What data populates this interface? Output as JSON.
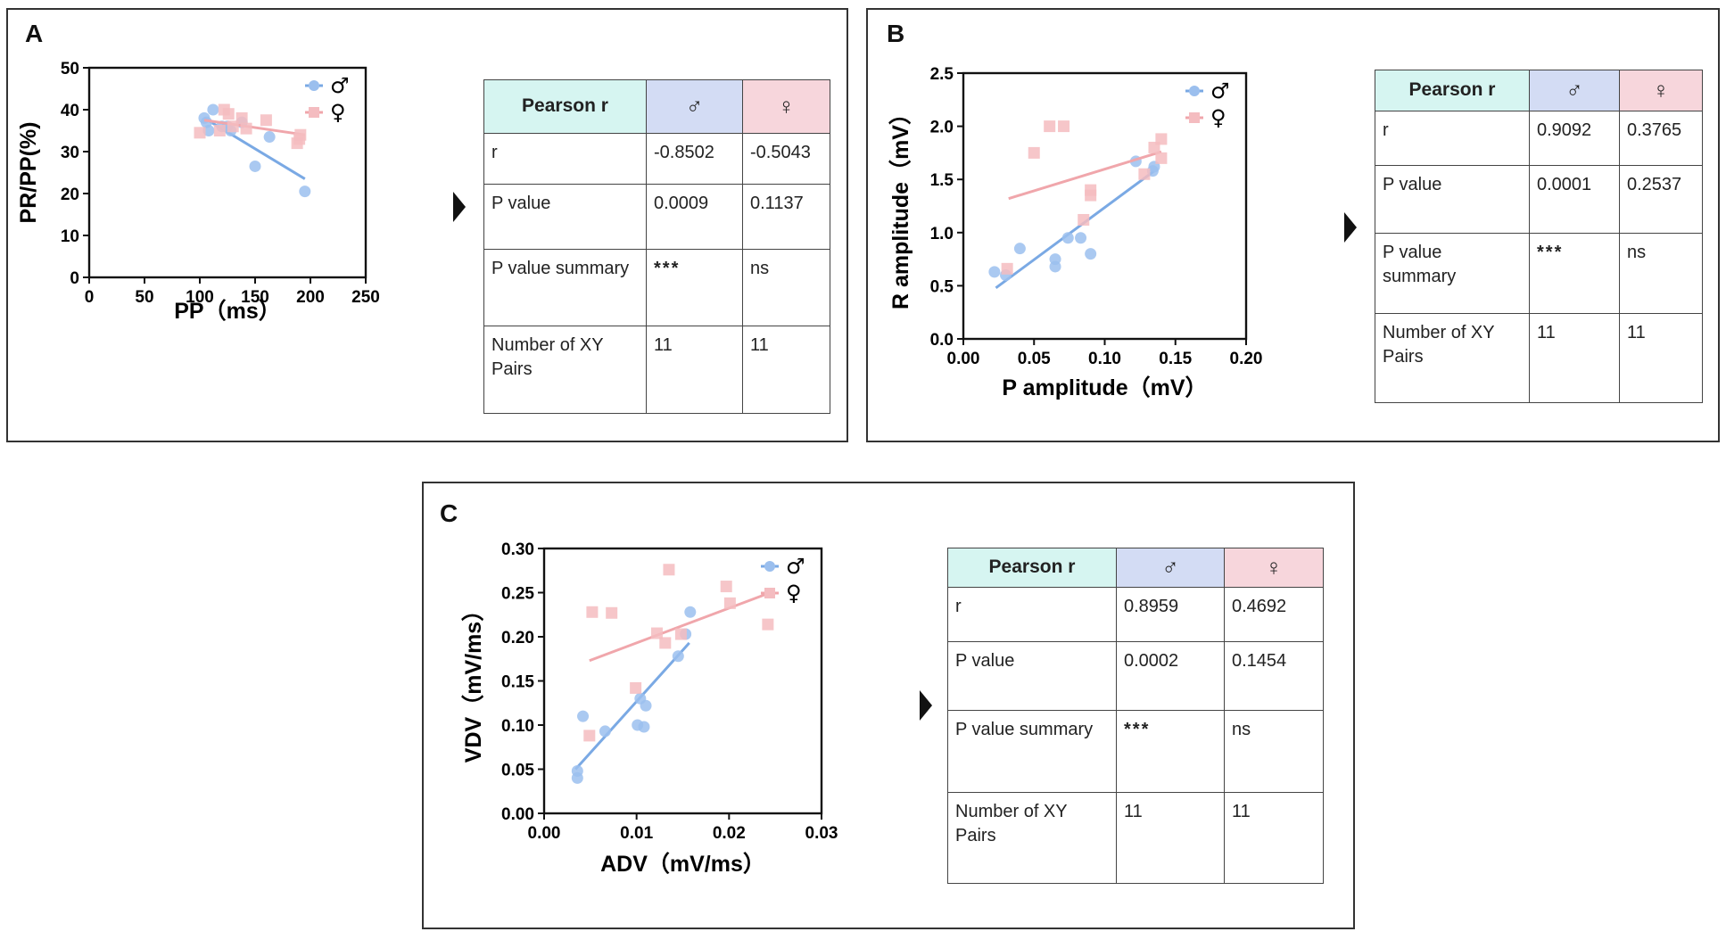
{
  "colors": {
    "male": "#9bbfee",
    "male_line": "#7aa9e4",
    "female": "#f4bcc0",
    "female_line": "#f0a6ab",
    "stars": "#d8202a"
  },
  "arrow_icon": "triangle-right-icon",
  "panels": [
    {
      "letter": "A",
      "chart_data": {
        "type": "scatter",
        "xlabel": "PP（ms）",
        "ylabel": "PR/PP(%)",
        "xlim": [
          0,
          250
        ],
        "ylim": [
          0,
          50
        ],
        "xticks": [
          "0",
          "50",
          "100",
          "150",
          "200",
          "250"
        ],
        "yticks": [
          "0",
          "10",
          "20",
          "30",
          "40",
          "50"
        ],
        "legend": {
          "placement": "top-right",
          "male": "♂",
          "female": "♀"
        },
        "series": [
          {
            "name": "♂",
            "color": "#9bbfee",
            "points": [
              [
                104,
                38
              ],
              [
                106,
                37
              ],
              [
                108,
                35
              ],
              [
                112,
                40
              ],
              [
                120,
                36
              ],
              [
                125,
                36
              ],
              [
                128,
                35
              ],
              [
                138,
                37
              ],
              [
                150,
                26.5
              ],
              [
                163,
                33.5
              ],
              [
                195,
                20.5
              ]
            ],
            "fit": [
              [
                104,
                38
              ],
              [
                195,
                23.5
              ]
            ]
          },
          {
            "name": "♀",
            "color": "#f4bcc0",
            "points": [
              [
                100,
                34.5
              ],
              [
                118,
                35
              ],
              [
                122,
                40
              ],
              [
                126,
                39
              ],
              [
                130,
                36
              ],
              [
                138,
                38
              ],
              [
                142,
                35.5
              ],
              [
                160,
                37.5
              ],
              [
                188,
                32
              ],
              [
                190,
                33
              ],
              [
                191,
                34
              ]
            ],
            "fit": [
              [
                104,
                37.5
              ],
              [
                195,
                34
              ]
            ]
          }
        ]
      },
      "table": {
        "header": "Pearson r",
        "male": "♂",
        "female": "♀",
        "rows": [
          {
            "label": "r",
            "male": "-0.8502",
            "female": "-0.5043"
          },
          {
            "label": "P value",
            "male": "0.0009",
            "female": "0.1137"
          },
          {
            "label": "P value summary",
            "male": "***",
            "female": "ns"
          },
          {
            "label": "Number of XY Pairs",
            "male": "11",
            "female": "11"
          }
        ]
      }
    },
    {
      "letter": "B",
      "chart_data": {
        "type": "scatter",
        "xlabel": "P amplitude（mV）",
        "ylabel": "R amplitude（mV）",
        "xlim": [
          0,
          0.2
        ],
        "ylim": [
          0,
          2.5
        ],
        "xticks": [
          "0.00",
          "0.05",
          "0.10",
          "0.15",
          "0.20"
        ],
        "yticks": [
          "0.0",
          "0.5",
          "1.0",
          "1.5",
          "2.0",
          "2.5"
        ],
        "legend": {
          "placement": "top-right",
          "male": "♂",
          "female": "♀"
        },
        "series": [
          {
            "name": "♂",
            "color": "#9bbfee",
            "points": [
              [
                0.022,
                0.63
              ],
              [
                0.03,
                0.6
              ],
              [
                0.04,
                0.85
              ],
              [
                0.065,
                0.75
              ],
              [
                0.065,
                0.68
              ],
              [
                0.074,
                0.95
              ],
              [
                0.083,
                0.95
              ],
              [
                0.09,
                0.8
              ],
              [
                0.122,
                1.67
              ],
              [
                0.134,
                1.58
              ],
              [
                0.135,
                1.62
              ]
            ],
            "fit": [
              [
                0.023,
                0.48
              ],
              [
                0.135,
                1.58
              ]
            ]
          },
          {
            "name": "♀",
            "color": "#f4bcc0",
            "points": [
              [
                0.031,
                0.66
              ],
              [
                0.05,
                1.75
              ],
              [
                0.061,
                2.0
              ],
              [
                0.071,
                2.0
              ],
              [
                0.085,
                1.12
              ],
              [
                0.09,
                1.35
              ],
              [
                0.09,
                1.4
              ],
              [
                0.128,
                1.55
              ],
              [
                0.135,
                1.8
              ],
              [
                0.14,
                1.88
              ],
              [
                0.14,
                1.7
              ]
            ],
            "fit": [
              [
                0.032,
                1.32
              ],
              [
                0.14,
                1.76
              ]
            ]
          }
        ]
      },
      "table": {
        "header": "Pearson r",
        "male": "♂",
        "female": "♀",
        "rows": [
          {
            "label": "r",
            "male": "0.9092",
            "female": "0.3765"
          },
          {
            "label": "P value",
            "male": "0.0001",
            "female": "0.2537"
          },
          {
            "label": "P value summary",
            "male": "***",
            "female": "ns"
          },
          {
            "label": "Number of XY Pairs",
            "male": "11",
            "female": "11"
          }
        ]
      }
    },
    {
      "letter": "C",
      "chart_data": {
        "type": "scatter",
        "xlabel": "ADV（mV/ms）",
        "ylabel": "VDV（mV/ms）",
        "xlim": [
          0,
          0.03
        ],
        "ylim": [
          0,
          0.3
        ],
        "xticks": [
          "0.00",
          "0.01",
          "0.02",
          "0.03"
        ],
        "yticks": [
          "0.00",
          "0.05",
          "0.10",
          "0.15",
          "0.20",
          "0.25",
          "0.30"
        ],
        "legend": {
          "placement": "top-right",
          "male": "♂",
          "female": "♀"
        },
        "series": [
          {
            "name": "♂",
            "color": "#9bbfee",
            "points": [
              [
                0.0036,
                0.048
              ],
              [
                0.0036,
                0.04
              ],
              [
                0.0042,
                0.11
              ],
              [
                0.0066,
                0.093
              ],
              [
                0.0101,
                0.1
              ],
              [
                0.0104,
                0.13
              ],
              [
                0.0108,
                0.098
              ],
              [
                0.011,
                0.122
              ],
              [
                0.0145,
                0.178
              ],
              [
                0.0153,
                0.203
              ],
              [
                0.0158,
                0.228
              ]
            ],
            "fit": [
              [
                0.0034,
                0.05
              ],
              [
                0.0157,
                0.193
              ]
            ]
          },
          {
            "name": "♀",
            "color": "#f4bcc0",
            "points": [
              [
                0.0049,
                0.088
              ],
              [
                0.0052,
                0.228
              ],
              [
                0.0073,
                0.227
              ],
              [
                0.0099,
                0.142
              ],
              [
                0.0122,
                0.204
              ],
              [
                0.0131,
                0.193
              ],
              [
                0.0135,
                0.276
              ],
              [
                0.0148,
                0.203
              ],
              [
                0.0197,
                0.257
              ],
              [
                0.0201,
                0.238
              ],
              [
                0.0242,
                0.214
              ]
            ],
            "fit": [
              [
                0.0049,
                0.173
              ],
              [
                0.0242,
                0.249
              ]
            ]
          }
        ]
      },
      "table": {
        "header": "Pearson r",
        "male": "♂",
        "female": "♀",
        "rows": [
          {
            "label": "r",
            "male": "0.8959",
            "female": "0.4692"
          },
          {
            "label": "P value",
            "male": "0.0002",
            "female": "0.1454"
          },
          {
            "label": "P value summary",
            "male": "***",
            "female": "ns"
          },
          {
            "label": "Number of XY Pairs",
            "male": "11",
            "female": "11"
          }
        ]
      }
    }
  ]
}
